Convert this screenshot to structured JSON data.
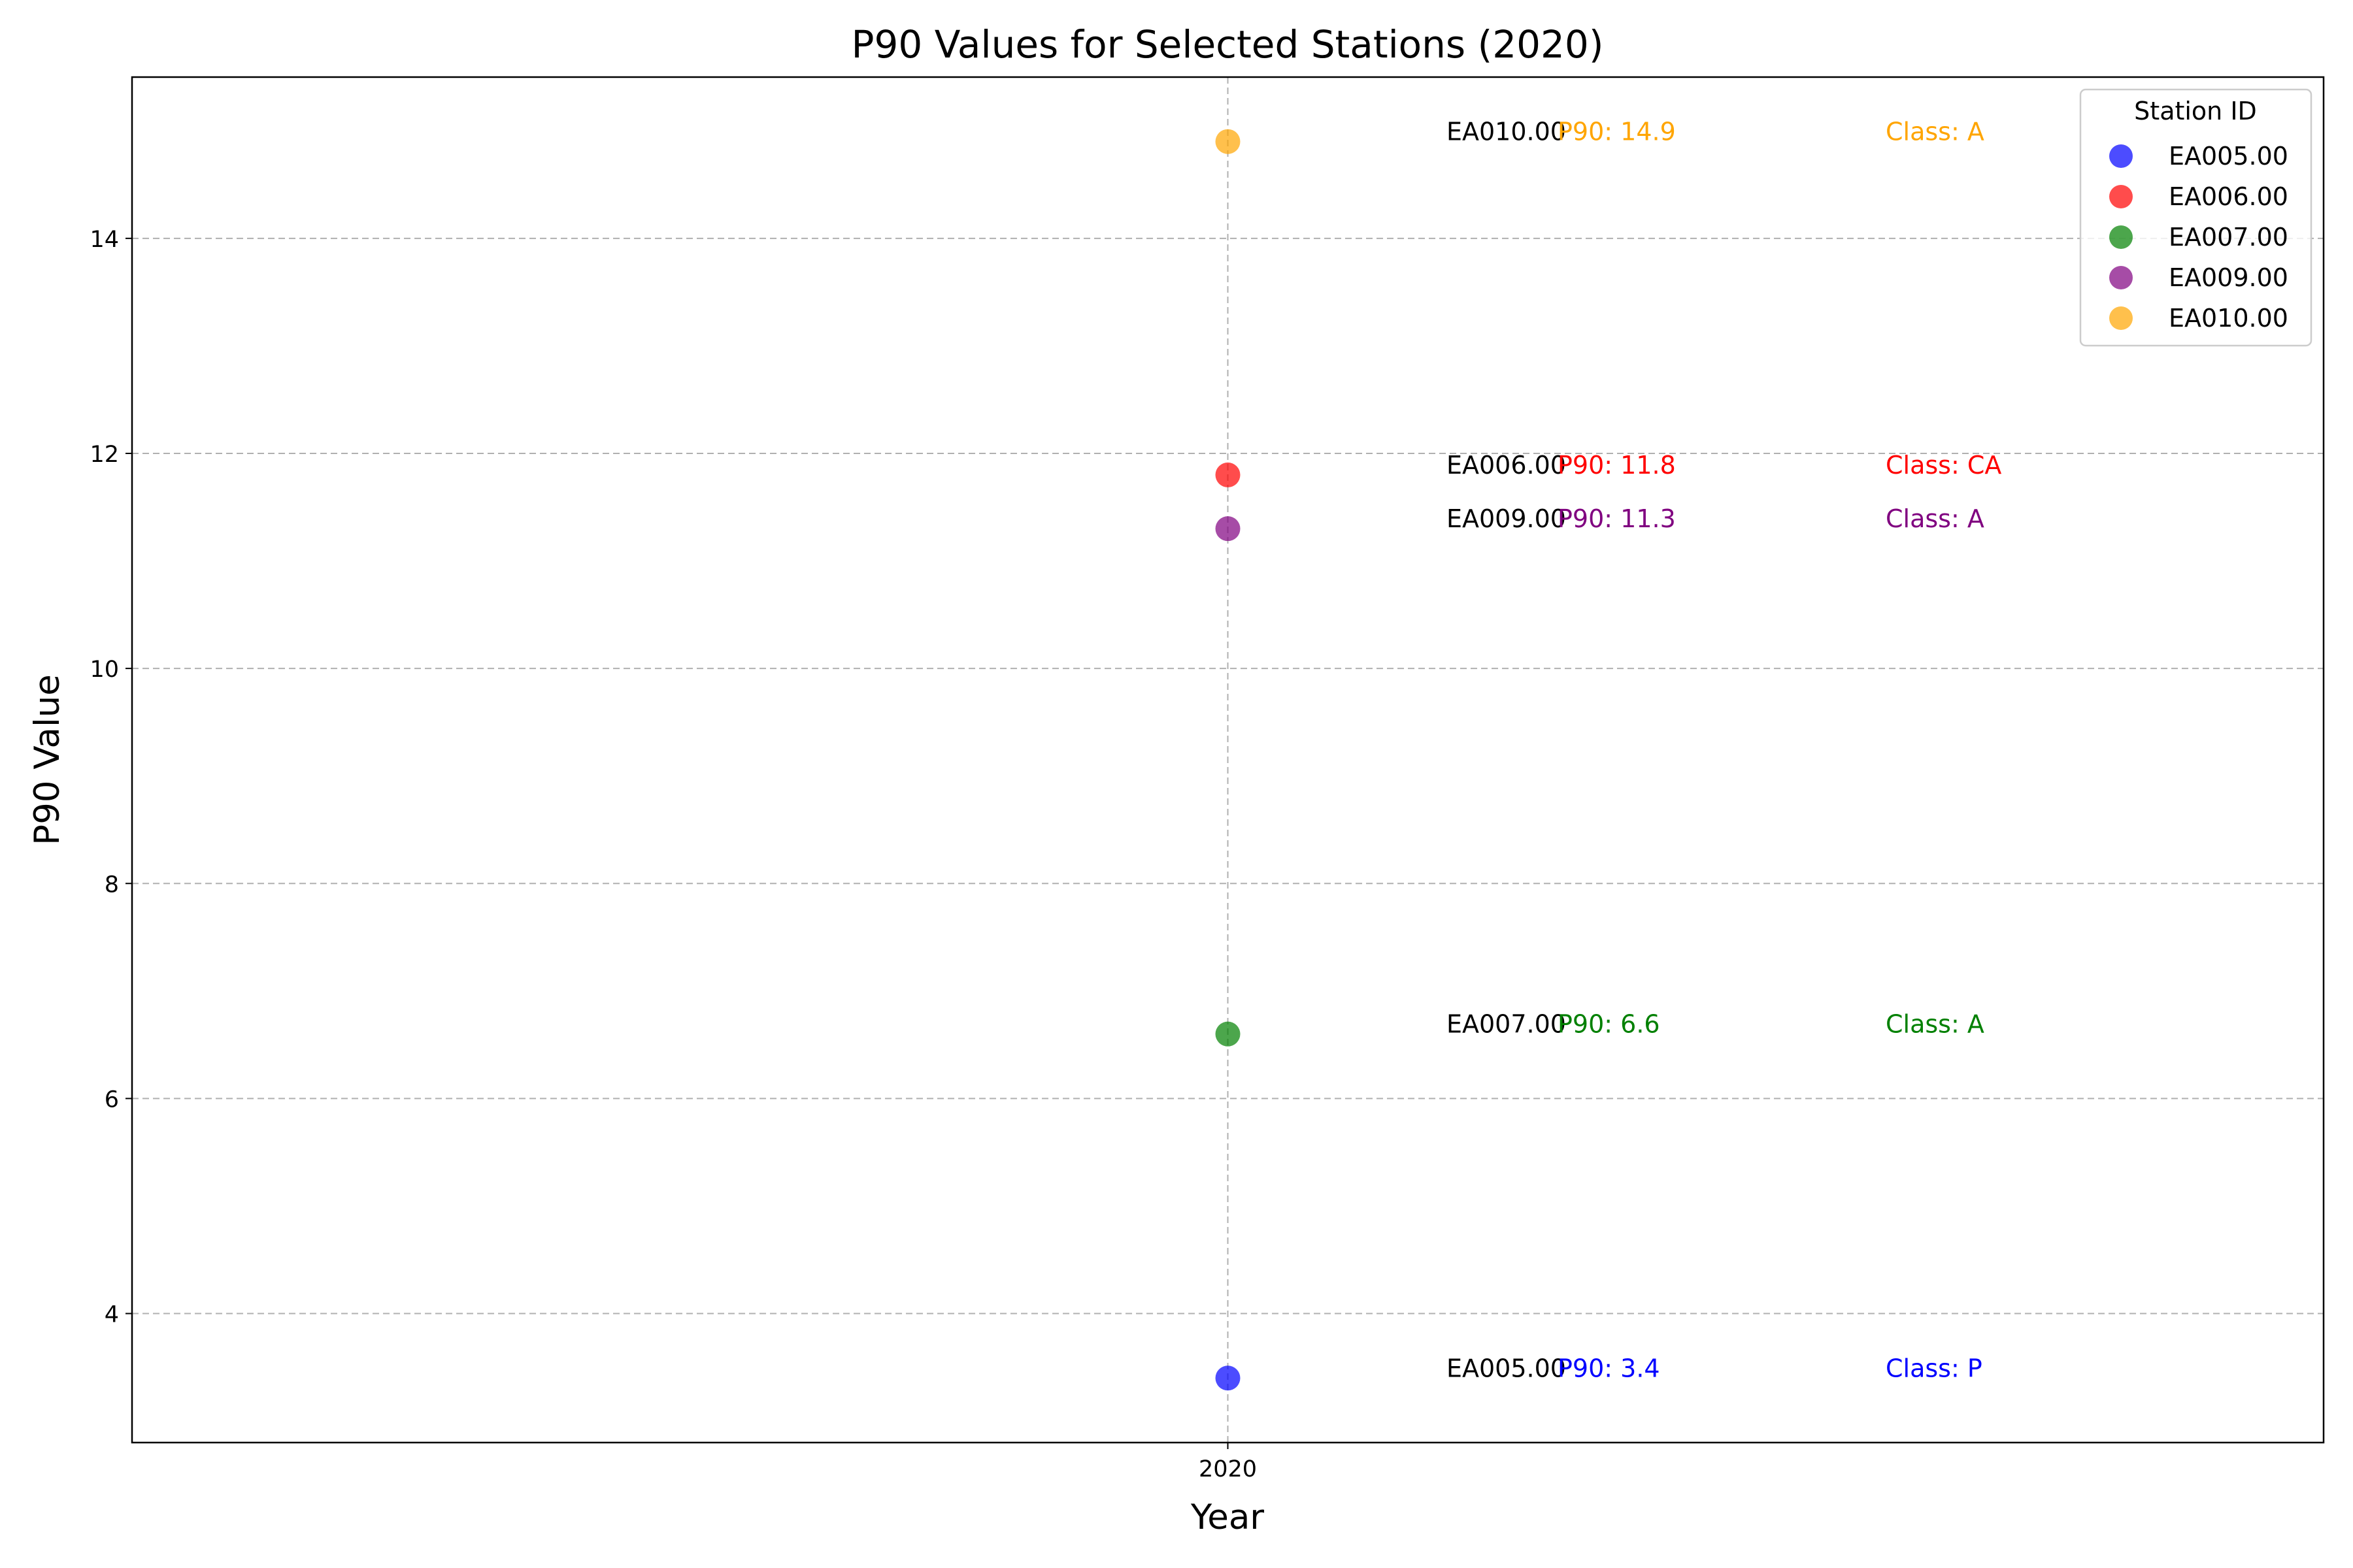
{
  "chart_data": {
    "type": "scatter",
    "title": "P90 Values for Selected Stations (2020)",
    "xlabel": "Year",
    "ylabel": "P90 Value",
    "x_categories": [
      "2020"
    ],
    "ylim": [
      2.8,
      15.5
    ],
    "yticks": [
      4,
      6,
      8,
      10,
      12,
      14
    ],
    "grid": true,
    "legend": {
      "title": "Station ID",
      "position": "top-right"
    },
    "series": [
      {
        "name": "EA005.00",
        "x": "2020",
        "y": 3.4,
        "color": "#0000ff",
        "id_label": "EA005.00",
        "p90_label": "P90: 3.4",
        "class_label": "Class: P"
      },
      {
        "name": "EA006.00",
        "x": "2020",
        "y": 11.8,
        "color": "#ff0000",
        "id_label": "EA006.00",
        "p90_label": "P90: 11.8",
        "class_label": "Class: CA"
      },
      {
        "name": "EA007.00",
        "x": "2020",
        "y": 6.6,
        "color": "#008000",
        "id_label": "EA007.00",
        "p90_label": "P90: 6.6",
        "class_label": "Class: A"
      },
      {
        "name": "EA009.00",
        "x": "2020",
        "y": 11.3,
        "color": "#800080",
        "id_label": "EA009.00",
        "p90_label": "P90: 11.3",
        "class_label": "Class: A"
      },
      {
        "name": "EA010.00",
        "x": "2020",
        "y": 14.9,
        "color": "#ffa500",
        "id_label": "EA010.00",
        "p90_label": "P90: 14.9",
        "class_label": "Class: A"
      }
    ]
  }
}
